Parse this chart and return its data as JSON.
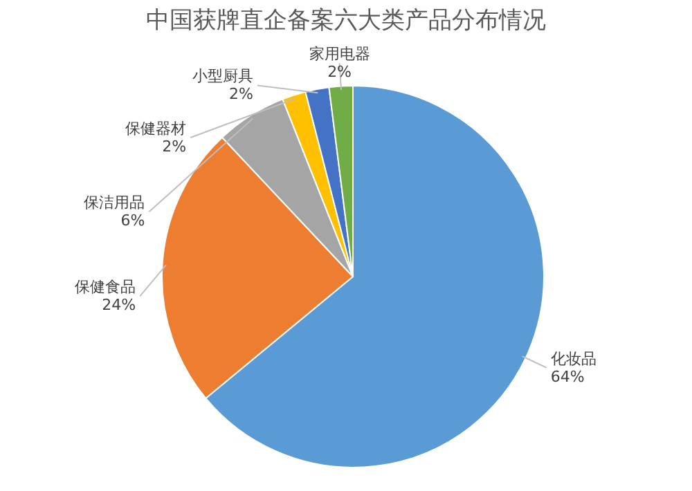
{
  "chart_data": {
    "type": "pie",
    "title": "中国获牌直企备案六大类产品分布情况",
    "categories": [
      "化妆品",
      "保健食品",
      "保洁用品",
      "保健器材",
      "小型厨具",
      "家用电器"
    ],
    "values": [
      64,
      24,
      6,
      2,
      2,
      2
    ],
    "colors": [
      "#5b9bd5",
      "#ed7d31",
      "#a5a5a5",
      "#ffc000",
      "#4472c4",
      "#70ad47"
    ],
    "value_labels": [
      "64%",
      "24%",
      "6%",
      "2%",
      "2%",
      "2%"
    ]
  }
}
